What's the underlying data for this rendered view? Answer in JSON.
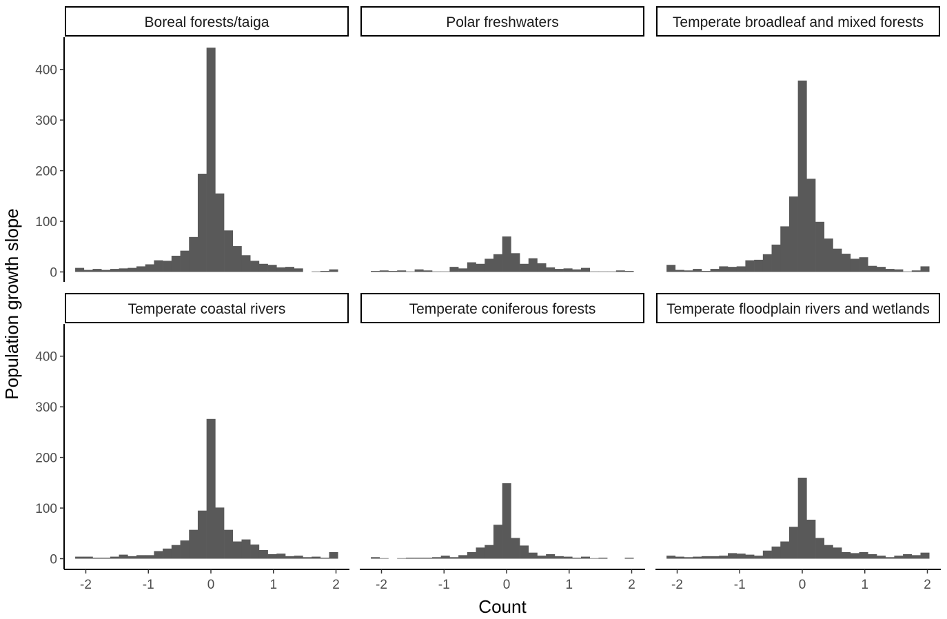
{
  "chart_data": {
    "type": "bar",
    "subtype": "faceted-histogram",
    "xlabel": "Count",
    "ylabel": "Population growth slope",
    "xlim": [
      -2.2,
      2.2
    ],
    "ylim": [
      0,
      460
    ],
    "x_ticks": [
      -2,
      -1,
      0,
      1,
      2
    ],
    "x_tick_labels": [
      "-2",
      "-1",
      "0",
      "1",
      "2"
    ],
    "y_ticks": [
      0,
      100,
      200,
      300,
      400
    ],
    "y_tick_labels": [
      "0",
      "100",
      "200",
      "300",
      "400"
    ],
    "bin_width": 0.14,
    "bin_centers": [
      -2.1,
      -1.96,
      -1.82,
      -1.68,
      -1.54,
      -1.4,
      -1.26,
      -1.12,
      -0.98,
      -0.84,
      -0.7,
      -0.56,
      -0.42,
      -0.28,
      -0.14,
      0.0,
      0.14,
      0.28,
      0.42,
      0.56,
      0.7,
      0.84,
      0.98,
      1.12,
      1.26,
      1.4,
      1.54,
      1.68,
      1.82,
      1.96
    ],
    "bar_color": "#595959",
    "grid": false,
    "facet_layout": {
      "rows": 2,
      "cols": 3
    },
    "facets": [
      {
        "name": "Boreal forests/taiga",
        "values": [
          8,
          4,
          6,
          4,
          6,
          7,
          8,
          11,
          15,
          23,
          22,
          32,
          42,
          69,
          194,
          443,
          155,
          82,
          51,
          33,
          22,
          16,
          14,
          9,
          10,
          7,
          0,
          1,
          2,
          5
        ]
      },
      {
        "name": "Polar freshwaters",
        "values": [
          2,
          3,
          2,
          3,
          1,
          5,
          3,
          1,
          1,
          10,
          7,
          19,
          16,
          26,
          35,
          70,
          37,
          16,
          27,
          17,
          9,
          6,
          7,
          5,
          8,
          1,
          1,
          1,
          3,
          2
        ]
      },
      {
        "name": "Temperate broadleaf and mixed forests",
        "values": [
          14,
          4,
          3,
          6,
          2,
          6,
          11,
          10,
          11,
          23,
          24,
          35,
          54,
          90,
          149,
          378,
          184,
          99,
          66,
          46,
          36,
          26,
          29,
          12,
          10,
          6,
          5,
          1,
          3,
          11
        ]
      },
      {
        "name": "Temperate coastal rivers",
        "values": [
          4,
          4,
          2,
          2,
          4,
          8,
          5,
          7,
          7,
          15,
          20,
          27,
          36,
          57,
          95,
          276,
          101,
          57,
          34,
          38,
          28,
          17,
          9,
          10,
          5,
          6,
          3,
          4,
          2,
          13
        ]
      },
      {
        "name": "Temperate coniferous forests",
        "values": [
          3,
          1,
          0,
          1,
          2,
          2,
          2,
          3,
          6,
          3,
          7,
          13,
          22,
          27,
          67,
          149,
          41,
          26,
          12,
          6,
          9,
          5,
          4,
          2,
          4,
          1,
          2,
          0,
          0,
          2
        ]
      },
      {
        "name": "Temperate floodplain rivers and wetlands",
        "values": [
          6,
          4,
          3,
          4,
          5,
          5,
          6,
          11,
          10,
          8,
          6,
          16,
          24,
          34,
          63,
          160,
          77,
          41,
          27,
          22,
          13,
          11,
          13,
          9,
          6,
          3,
          6,
          9,
          7,
          12
        ]
      }
    ]
  }
}
